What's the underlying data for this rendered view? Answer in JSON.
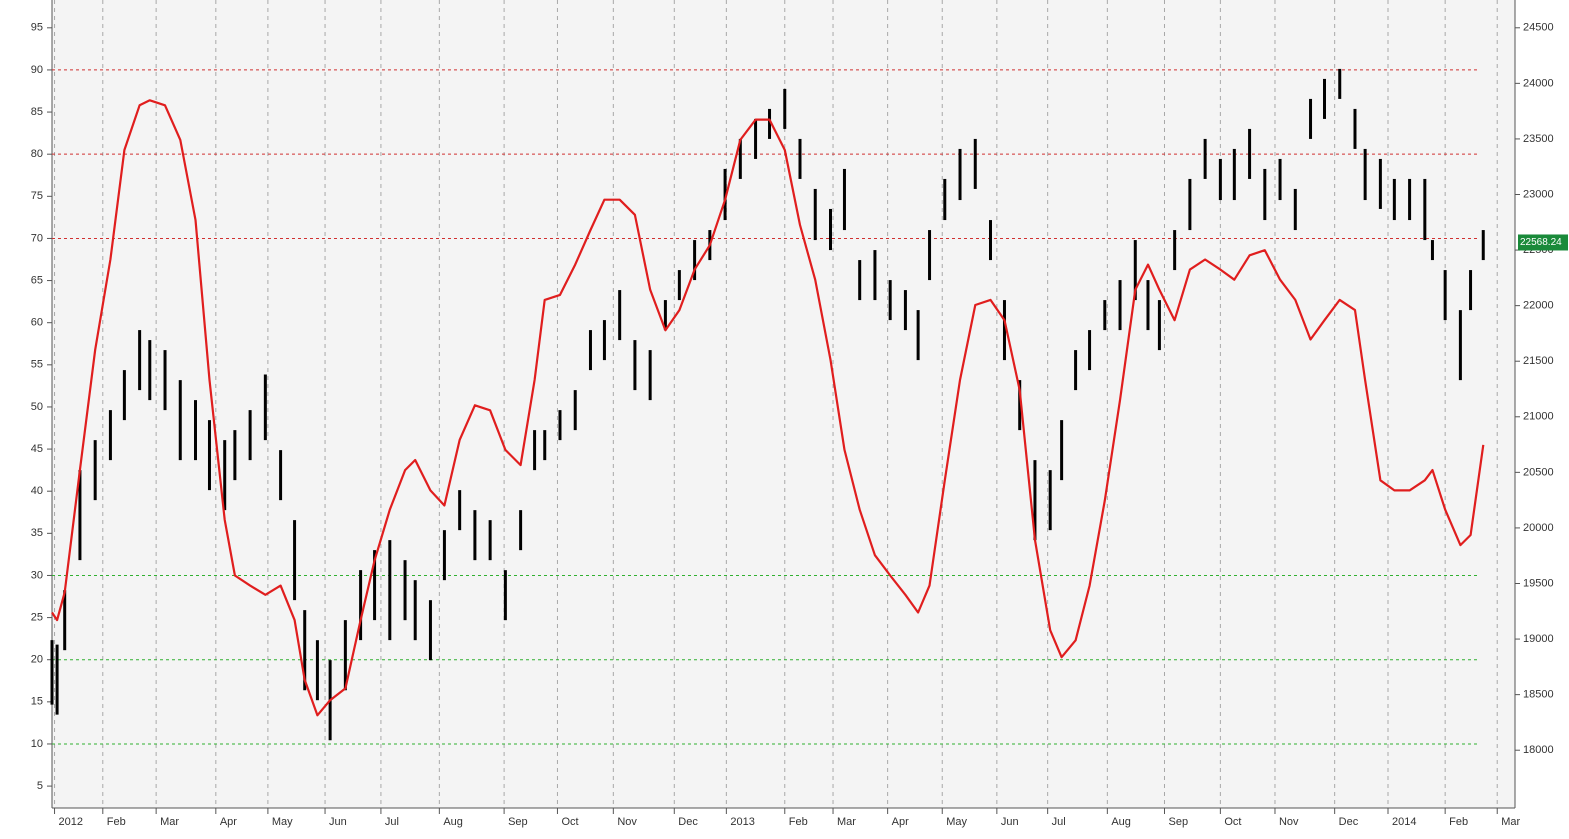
{
  "chart_data": {
    "type": "combo",
    "xlim": [
      0,
      115.2
    ],
    "xticks": [
      {
        "value": 0.2,
        "label": "2012"
      },
      {
        "value": 4.0,
        "label": "Feb"
      },
      {
        "value": 8.2,
        "label": "Mar"
      },
      {
        "value": 12.9,
        "label": "Apr"
      },
      {
        "value": 17.0,
        "label": "May"
      },
      {
        "value": 21.5,
        "label": "Jun"
      },
      {
        "value": 25.9,
        "label": "Jul"
      },
      {
        "value": 30.5,
        "label": "Aug"
      },
      {
        "value": 35.6,
        "label": "Sep"
      },
      {
        "value": 39.8,
        "label": "Oct"
      },
      {
        "value": 44.2,
        "label": "Nov"
      },
      {
        "value": 49.0,
        "label": "Dec"
      },
      {
        "value": 53.1,
        "label": "2013"
      },
      {
        "value": 57.7,
        "label": "Feb"
      },
      {
        "value": 61.5,
        "label": "Mar"
      },
      {
        "value": 65.8,
        "label": "Apr"
      },
      {
        "value": 70.1,
        "label": "May"
      },
      {
        "value": 74.4,
        "label": "Jun"
      },
      {
        "value": 78.4,
        "label": "Jul"
      },
      {
        "value": 83.1,
        "label": "Aug"
      },
      {
        "value": 87.6,
        "label": "Sep"
      },
      {
        "value": 92.0,
        "label": "Oct"
      },
      {
        "value": 96.3,
        "label": "Nov"
      },
      {
        "value": 101.0,
        "label": "Dec"
      },
      {
        "value": 105.2,
        "label": "2014"
      },
      {
        "value": 109.7,
        "label": "Feb"
      },
      {
        "value": 113.8,
        "label": "Mar"
      }
    ],
    "ylim": [
      2.4,
      98.3
    ],
    "yticks": [
      5,
      10,
      15,
      20,
      25,
      30,
      35,
      40,
      45,
      50,
      55,
      60,
      65,
      70,
      75,
      80,
      85,
      90,
      95
    ],
    "y2lim": [
      17480,
      24750
    ],
    "y2ticks": [
      18000,
      18500,
      19000,
      19500,
      20000,
      20500,
      21000,
      21500,
      22000,
      22500,
      23000,
      23500,
      24000,
      24500
    ],
    "reference_lines": [
      {
        "value": 90,
        "color": "#d03030"
      },
      {
        "value": 80,
        "color": "#d03030"
      },
      {
        "value": 70,
        "color": "#d03030"
      },
      {
        "value": 30,
        "color": "#30b030"
      },
      {
        "value": 20,
        "color": "#30b030"
      },
      {
        "value": 10,
        "color": "#30b030"
      }
    ],
    "last_price": {
      "value": 22568.24,
      "label": "22568.24",
      "color": "#1a8a3a"
    },
    "x": [
      0,
      0.4,
      1.0,
      2.2,
      3.4,
      4.6,
      5.7,
      6.9,
      7.7,
      8.9,
      10.1,
      11.3,
      12.4,
      13.6,
      14.4,
      15.6,
      16.8,
      18.0,
      19.1,
      19.9,
      20.9,
      21.9,
      23.1,
      24.3,
      25.4,
      26.6,
      27.8,
      28.6,
      29.8,
      30.9,
      32.1,
      33.3,
      34.5,
      35.7,
      36.9,
      38.0,
      38.8,
      40.0,
      41.2,
      42.4,
      43.5,
      44.7,
      45.9,
      47.1,
      48.3,
      49.4,
      50.6,
      51.8,
      53.0,
      54.2,
      55.4,
      56.5,
      57.7,
      58.9,
      60.1,
      61.3,
      62.4,
      63.6,
      64.8,
      66.0,
      67.2,
      68.2,
      69.1,
      70.3,
      71.5,
      72.7,
      73.9,
      75.0,
      76.2,
      77.4,
      78.6,
      79.5,
      80.6,
      81.7,
      82.9,
      84.1,
      85.3,
      86.3,
      87.2,
      88.4,
      89.6,
      90.8,
      92.0,
      93.1,
      94.3,
      95.5,
      96.7,
      97.9,
      99.1,
      100.2,
      101.4,
      102.6,
      103.4,
      104.6,
      105.7,
      106.9,
      108.1,
      108.7,
      109.7,
      110.9,
      111.7,
      112.7
    ],
    "series": [
      {
        "type": "range",
        "axis": "y2",
        "color": "#000000",
        "high": [
          18990,
          18950,
          19440,
          20520,
          20790,
          21060,
          21420,
          21780,
          21690,
          21600,
          21330,
          21150,
          20970,
          20790,
          20880,
          21060,
          21380,
          20700,
          20070,
          19260,
          18990,
          18810,
          19170,
          19620,
          19800,
          19890,
          19710,
          19530,
          19350,
          19980,
          20340,
          20160,
          20070,
          19620,
          20160,
          20880,
          20880,
          21060,
          21240,
          21780,
          21870,
          22140,
          21690,
          21600,
          22050,
          22320,
          22590,
          22680,
          23230,
          23500,
          23680,
          23770,
          23950,
          23500,
          23050,
          22870,
          23230,
          22410,
          22500,
          22230,
          22140,
          21960,
          22680,
          23140,
          23410,
          23500,
          22770,
          22050,
          21330,
          20610,
          20520,
          20970,
          21600,
          21780,
          22050,
          22230,
          22590,
          22230,
          22050,
          22680,
          23140,
          23500,
          23320,
          23410,
          23590,
          23230,
          23320,
          23050,
          23860,
          24040,
          24130,
          23770,
          23410,
          23320,
          23140,
          23140,
          23140,
          22590,
          22320,
          21960,
          22320,
          22680
        ],
        "low": [
          18410,
          18320,
          18900,
          19710,
          20250,
          20610,
          20970,
          21240,
          21150,
          21060,
          20610,
          20610,
          20340,
          20160,
          20430,
          20610,
          20790,
          20250,
          19350,
          18540,
          18450,
          18090,
          18540,
          18990,
          19170,
          18990,
          19170,
          18990,
          18810,
          19530,
          19980,
          19710,
          19710,
          19170,
          19800,
          20520,
          20610,
          20790,
          20880,
          21420,
          21510,
          21690,
          21240,
          21150,
          21780,
          22050,
          22230,
          22410,
          22770,
          23140,
          23320,
          23500,
          23590,
          23140,
          22590,
          22500,
          22680,
          22050,
          22050,
          21870,
          21780,
          21510,
          22230,
          22770,
          22950,
          23050,
          22410,
          21510,
          20880,
          19890,
          19980,
          20430,
          21240,
          21420,
          21780,
          21780,
          22050,
          21780,
          21600,
          22320,
          22680,
          23140,
          22950,
          22950,
          23140,
          22770,
          22950,
          22680,
          23500,
          23680,
          23860,
          23410,
          22950,
          22870,
          22770,
          22770,
          22590,
          22410,
          21870,
          21330,
          21960,
          22410
        ]
      },
      {
        "type": "line",
        "color": "#e01e1e",
        "values": [
          25.6,
          24.7,
          28,
          42.5,
          56.8,
          67.5,
          80.5,
          85.8,
          86.4,
          85.8,
          81.7,
          72.2,
          53.2,
          36.6,
          30.0,
          28.8,
          27.7,
          28.8,
          24.7,
          17.6,
          13.4,
          15.2,
          16.6,
          24.7,
          31.8,
          37.8,
          42.5,
          43.7,
          40.1,
          38.3,
          46.1,
          50.2,
          49.6,
          44.9,
          43.1,
          53.2,
          62.7,
          63.3,
          66.9,
          71.0,
          74.6,
          74.6,
          72.8,
          63.9,
          59.1,
          61.5,
          66.3,
          69.2,
          74.6,
          81.7,
          84.1,
          84.1,
          80.5,
          71.6,
          65.1,
          55.6,
          44.9,
          37.8,
          32.4,
          30.0,
          27.7,
          25.6,
          28.8,
          41.3,
          53.2,
          62.1,
          62.7,
          60.3,
          52.0,
          34.2,
          23.5,
          20.3,
          22.3,
          28.8,
          38.9,
          50.8,
          63.9,
          66.9,
          63.9,
          60.3,
          66.3,
          67.5,
          66.3,
          65.1,
          68.0,
          68.6,
          65.1,
          62.7,
          58.0,
          60.3,
          62.7,
          61.5,
          53.2,
          41.3,
          40.1,
          40.1,
          41.3,
          42.5,
          37.8,
          33.6,
          34.8,
          45.5
        ]
      }
    ]
  }
}
